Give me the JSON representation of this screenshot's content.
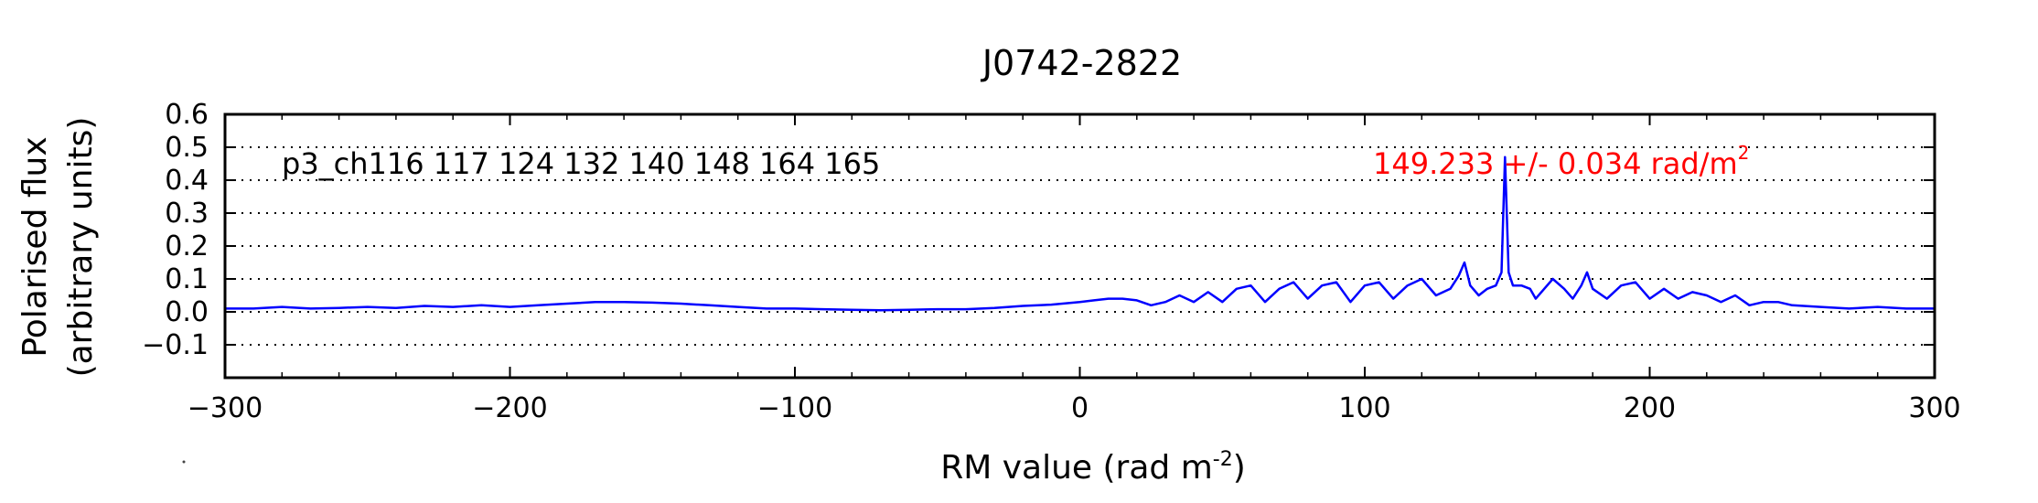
{
  "chart_data": {
    "type": "line",
    "title": "J0742-2822",
    "xlabel": "RM value (rad m",
    "xlabel_sup": "-2",
    "xlabel_end": ")",
    "ylabel_line1": "Polarised flux",
    "ylabel_line2": "(arbitrary units)",
    "xlim": [
      -300,
      300
    ],
    "ylim": [
      -0.2,
      0.6
    ],
    "xticks": [
      -300,
      -200,
      -100,
      0,
      100,
      200,
      300
    ],
    "xtick_labels": [
      "−300",
      "−200",
      "−100",
      "0",
      "100",
      "200",
      "300"
    ],
    "yticks": [
      -0.1,
      0.0,
      0.1,
      0.2,
      0.3,
      0.4,
      0.5,
      0.6
    ],
    "ytick_labels": [
      "−0.1",
      "0.0",
      "0.1",
      "0.2",
      "0.3",
      "0.4",
      "0.5",
      "0.6"
    ],
    "grid": "horizontal-dotted",
    "annotation_left": "p3_ch116 117 124 132 140 148 164 165",
    "annotation_peak_text": "149.233 +/- 0.034 rad/m",
    "annotation_peak_sup": "2",
    "colors": {
      "series": "#0000ff",
      "peak_annotation": "#ff0000",
      "axes": "#000000"
    },
    "series": [
      {
        "x": [
          -300,
          -290,
          -280,
          -270,
          -260,
          -250,
          -240,
          -230,
          -220,
          -210,
          -200,
          -190,
          -180,
          -170,
          -160,
          -150,
          -140,
          -130,
          -120,
          -110,
          -100,
          -90,
          -80,
          -70,
          -60,
          -50,
          -40,
          -30,
          -20,
          -10,
          0,
          5,
          10,
          15,
          20,
          25,
          30,
          35,
          40,
          45,
          50,
          55,
          60,
          65,
          70,
          75,
          80,
          85,
          90,
          95,
          100,
          105,
          110,
          115,
          120,
          125,
          130,
          133,
          135,
          137,
          140,
          143,
          146,
          148,
          149.2,
          150.5,
          152,
          155,
          158,
          160,
          163,
          166,
          170,
          173,
          176,
          178,
          180,
          185,
          190,
          195,
          200,
          205,
          210,
          215,
          220,
          225,
          230,
          235,
          240,
          245,
          250,
          260,
          270,
          280,
          290,
          300
        ],
        "y": [
          0.01,
          0.01,
          0.015,
          0.01,
          0.012,
          0.015,
          0.012,
          0.018,
          0.015,
          0.02,
          0.015,
          0.02,
          0.025,
          0.03,
          0.03,
          0.028,
          0.025,
          0.02,
          0.015,
          0.01,
          0.01,
          0.008,
          0.006,
          0.005,
          0.006,
          0.008,
          0.008,
          0.012,
          0.018,
          0.022,
          0.03,
          0.035,
          0.04,
          0.04,
          0.035,
          0.02,
          0.03,
          0.05,
          0.03,
          0.06,
          0.03,
          0.07,
          0.08,
          0.03,
          0.07,
          0.09,
          0.04,
          0.08,
          0.09,
          0.03,
          0.08,
          0.09,
          0.04,
          0.08,
          0.1,
          0.05,
          0.07,
          0.11,
          0.15,
          0.08,
          0.05,
          0.07,
          0.08,
          0.12,
          0.47,
          0.12,
          0.08,
          0.08,
          0.07,
          0.04,
          0.07,
          0.1,
          0.07,
          0.04,
          0.08,
          0.12,
          0.07,
          0.04,
          0.08,
          0.09,
          0.04,
          0.07,
          0.04,
          0.06,
          0.05,
          0.03,
          0.05,
          0.02,
          0.03,
          0.03,
          0.02,
          0.015,
          0.01,
          0.015,
          0.01,
          0.01
        ]
      }
    ]
  }
}
